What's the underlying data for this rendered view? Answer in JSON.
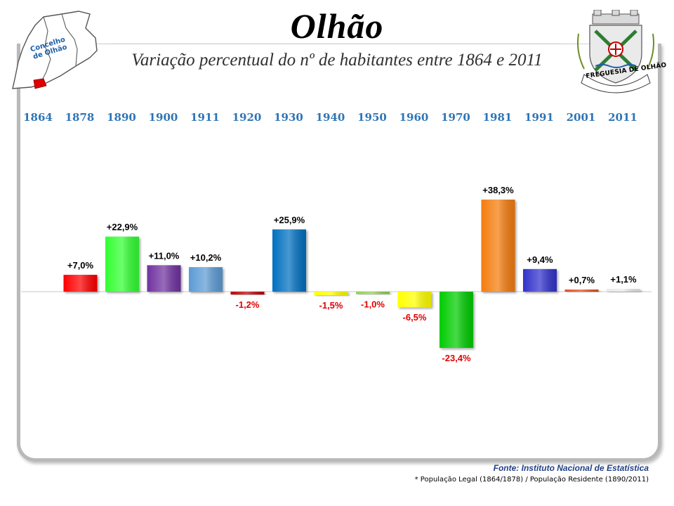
{
  "header": {
    "title": "Olhão",
    "subtitle": "Variação percentual do nº de habitantes entre 1864 e 2011",
    "map_label_line1": "Concelho",
    "map_label_line2": "de Olhão",
    "crest_label": "FREGUESIA DE OLHÃO"
  },
  "chart_data": {
    "type": "bar",
    "title": "Olhão",
    "subtitle": "Variação percentual do nº de habitantes entre 1864 e 2011",
    "categories": [
      "1864",
      "1878",
      "1890",
      "1900",
      "1911",
      "1920",
      "1930",
      "1940",
      "1950",
      "1960",
      "1970",
      "1981",
      "1991",
      "2001",
      "2011"
    ],
    "values": [
      null,
      7.0,
      22.9,
      11.0,
      10.2,
      -1.2,
      25.9,
      -1.5,
      -1.0,
      -6.5,
      -23.4,
      38.3,
      9.4,
      0.7,
      1.1
    ],
    "labels": [
      "",
      "+7,0%",
      "+22,9%",
      "+11,0%",
      "+10,2%",
      "-1,2%",
      "+25,9%",
      "-1,5%",
      "-1,0%",
      "-6,5%",
      "-23,4%",
      "+38,3%",
      "+9,4%",
      "+0,7%",
      "+1,1%"
    ],
    "colors": [
      "",
      "#ff0000",
      "#33ff33",
      "#7030a0",
      "#5b9bd5",
      "#c00000",
      "#0070c0",
      "#ffff00",
      "#92d050",
      "#ffff00",
      "#00cc00",
      "#f47b0c",
      "#3333cc",
      "#e05020",
      "#e8e8e8"
    ],
    "negative_label_color": "#e00000",
    "positive_label_color": "#000000",
    "xlabel": "",
    "ylabel": "",
    "grid": false,
    "legend": "none"
  },
  "footer": {
    "source": "Fonte: Instituto Nacional de Estatística",
    "note": "* População Legal (1864/1878) / População Residente (1890/2011)"
  }
}
